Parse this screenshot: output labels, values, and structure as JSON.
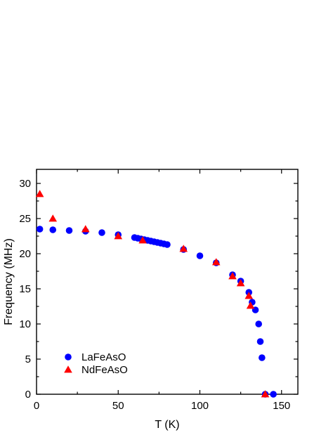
{
  "chart_data": {
    "type": "scatter",
    "title": "",
    "xlabel": "T (K)",
    "ylabel": "Frequency (MHz)",
    "xlim": [
      0,
      160
    ],
    "ylim": [
      0,
      32
    ],
    "xticks": [
      0,
      50,
      100,
      150
    ],
    "yticks": [
      0,
      5,
      10,
      15,
      20,
      25,
      30
    ],
    "xtick_labels": [
      "0",
      "50",
      "100",
      "150"
    ],
    "ytick_labels": [
      "0",
      "5",
      "10",
      "15",
      "20",
      "25",
      "30"
    ],
    "grid": false,
    "legend_position": "bottom-left",
    "series": [
      {
        "name": "LaFeAsO",
        "marker": "circle",
        "color": "#0000ff",
        "points": [
          [
            2,
            23.5
          ],
          [
            10,
            23.4
          ],
          [
            20,
            23.3
          ],
          [
            30,
            23.2
          ],
          [
            40,
            23.0
          ],
          [
            50,
            22.7
          ],
          [
            60,
            22.3
          ],
          [
            62,
            22.2
          ],
          [
            64,
            22.1
          ],
          [
            66,
            22.0
          ],
          [
            68,
            21.9
          ],
          [
            70,
            21.8
          ],
          [
            72,
            21.7
          ],
          [
            74,
            21.6
          ],
          [
            76,
            21.5
          ],
          [
            78,
            21.4
          ],
          [
            80,
            21.3
          ],
          [
            90,
            20.6
          ],
          [
            100,
            19.7
          ],
          [
            110,
            18.7
          ],
          [
            120,
            17.0
          ],
          [
            125,
            16.1
          ],
          [
            130,
            14.5
          ],
          [
            132,
            13.1
          ],
          [
            134,
            12.0
          ],
          [
            136,
            10.0
          ],
          [
            137,
            7.5
          ],
          [
            138,
            5.2
          ],
          [
            140,
            0.0
          ],
          [
            145,
            0.0
          ]
        ]
      },
      {
        "name": "NdFeAsO",
        "marker": "triangle",
        "color": "#ff0000",
        "points": [
          [
            2,
            28.5
          ],
          [
            10,
            25.0
          ],
          [
            30,
            23.5
          ],
          [
            50,
            22.5
          ],
          [
            65,
            21.9
          ],
          [
            90,
            20.7
          ],
          [
            110,
            18.8
          ],
          [
            120,
            16.8
          ],
          [
            125,
            15.8
          ],
          [
            130,
            14.0
          ],
          [
            131,
            12.6
          ],
          [
            140,
            0.0
          ]
        ]
      }
    ]
  }
}
